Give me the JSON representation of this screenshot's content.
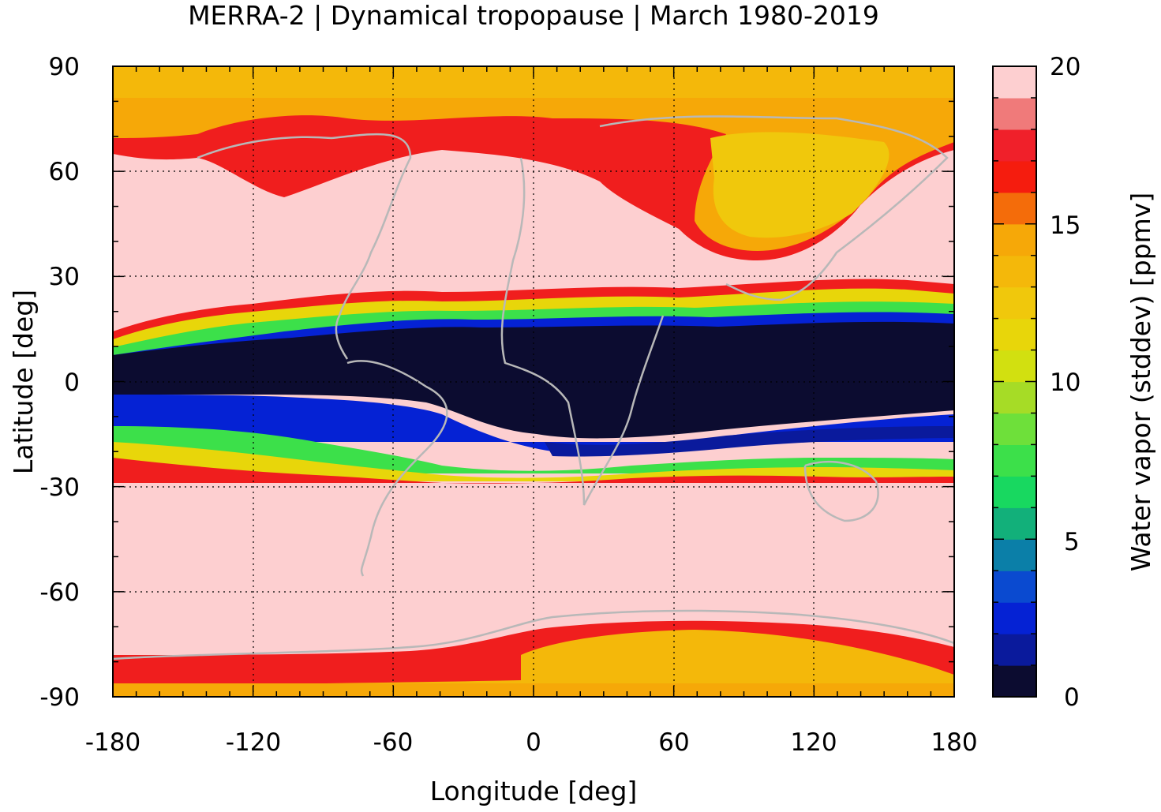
{
  "chart_data": {
    "type": "heatmap",
    "title": "MERRA-2 | Dynamical tropopause | March 1980-2019",
    "xlabel": "Longitude [deg]",
    "ylabel": "Latitude [deg]",
    "xlim": [
      -180,
      180
    ],
    "ylim": [
      -90,
      90
    ],
    "xticks": [
      -180,
      -120,
      -60,
      0,
      60,
      120,
      180
    ],
    "yticks": [
      -90,
      -60,
      -30,
      0,
      30,
      60,
      90
    ],
    "xtick_labels": [
      "-180",
      "-120",
      "-60",
      "0",
      "60",
      "120",
      "180"
    ],
    "ytick_labels": [
      "-90",
      "-60",
      "-30",
      "0",
      "30",
      "60",
      "90"
    ],
    "grid": true,
    "colorbar": {
      "label": "Water vapor (stddev) [ppmv]",
      "range": [
        0,
        20
      ],
      "ticks": [
        0,
        5,
        10,
        15,
        20
      ],
      "tick_labels": [
        "0",
        "5",
        "10",
        "15",
        "20"
      ],
      "levels": 20,
      "colors": [
        "#0c0c30",
        "#0a1a9c",
        "#0522d4",
        "#0a4ad0",
        "#0b7fa8",
        "#12b07a",
        "#18d860",
        "#3ce04a",
        "#6ee03a",
        "#a6dc26",
        "#d2e010",
        "#e8d60a",
        "#f0c80c",
        "#f4b80a",
        "#f6a808",
        "#f46c0a",
        "#f51c0e",
        "#f0202a",
        "#f07a7a",
        "#fdcfd0"
      ]
    },
    "field_description_by_latitude": [
      {
        "lat_range": [
          70,
          90
        ],
        "value_ppmv": 13
      },
      {
        "lat_range": [
          35,
          70
        ],
        "value_ppmv": 20,
        "note": "Eurasia region 35-70N approx 12-16"
      },
      {
        "lat_range": [
          18,
          28
        ],
        "value_ppmv": 12
      },
      {
        "lat_range": [
          -8,
          15
        ],
        "value_ppmv": 0.5
      },
      {
        "lat_range": [
          -28,
          -8
        ],
        "value_ppmv": 5
      },
      {
        "lat_range": [
          -75,
          -28
        ],
        "value_ppmv": 20
      },
      {
        "lat_range": [
          -90,
          -75
        ],
        "value_ppmv": 15
      }
    ],
    "coastlines": true
  }
}
